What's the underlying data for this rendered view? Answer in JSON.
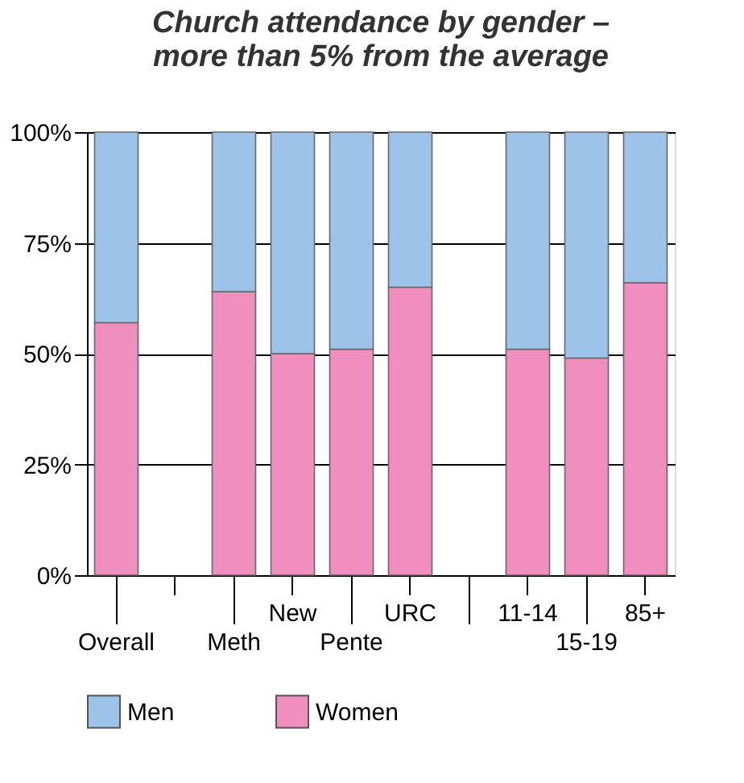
{
  "chart_data": {
    "type": "bar",
    "title": "Church attendance by gender – more than 5% from the average",
    "categories": [
      "Overall",
      null,
      "Meth",
      "New",
      "Pente",
      "URC",
      null,
      "11-14",
      "15-19",
      "85+"
    ],
    "stacked": true,
    "series": [
      {
        "name": "Women",
        "color": "#f08fbd",
        "values": [
          57,
          null,
          64,
          50,
          51,
          65,
          null,
          51,
          49,
          66
        ]
      },
      {
        "name": "Men",
        "color": "#9dc4e8",
        "values": [
          43,
          null,
          36,
          50,
          49,
          35,
          null,
          49,
          51,
          34
        ]
      }
    ],
    "ylim": [
      0,
      100
    ],
    "yticks": [
      {
        "value": 0,
        "label": "0%"
      },
      {
        "value": 25,
        "label": "25%"
      },
      {
        "value": 50,
        "label": "50%"
      },
      {
        "value": 75,
        "label": "75%"
      },
      {
        "value": 100,
        "label": "100%"
      }
    ],
    "grid": "y",
    "legend": "bottom"
  }
}
